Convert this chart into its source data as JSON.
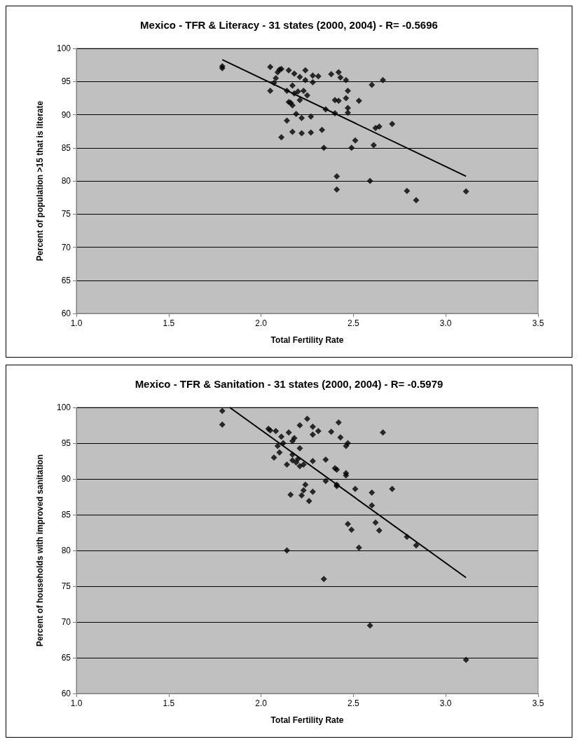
{
  "chart_data": [
    {
      "type": "scatter",
      "title": "Mexico - TFR & Literacy - 31 states (2000, 2004) - R= -0.5696",
      "xlabel": "Total Fertility Rate",
      "ylabel": "Percent of population >15 that is literate",
      "xlim": [
        1.0,
        3.5
      ],
      "xticks": [
        {
          "value": 1,
          "label": "1.0"
        },
        1.5,
        {
          "value": 2,
          "label": "2.0"
        },
        2.5,
        {
          "value": 3,
          "label": "3.0"
        },
        3.5
      ],
      "ylim": [
        60,
        100
      ],
      "yticks": [
        60,
        65,
        70,
        75,
        80,
        85,
        90,
        95,
        100
      ],
      "grid": "y",
      "marker": "diamond",
      "series": [
        {
          "color": "#000000",
          "x": [
            1.79,
            1.79,
            2.05,
            2.05,
            2.07,
            2.08,
            2.09,
            2.1,
            2.11,
            2.11,
            2.14,
            2.14,
            2.15,
            2.15,
            2.16,
            2.17,
            2.17,
            2.17,
            2.18,
            2.18,
            2.19,
            2.2,
            2.21,
            2.21,
            2.22,
            2.22,
            2.23,
            2.24,
            2.24,
            2.25,
            2.27,
            2.27,
            2.28,
            2.28,
            2.31,
            2.33,
            2.34,
            2.35,
            2.38,
            2.4,
            2.4,
            2.41,
            2.41,
            2.42,
            2.42,
            2.43,
            2.46,
            2.46,
            2.47,
            2.47,
            2.47,
            2.49,
            2.51,
            2.53,
            2.59,
            2.6,
            2.61,
            2.62,
            2.64,
            2.66,
            2.71,
            2.79,
            2.84,
            3.11
          ],
          "values": [
            97.3,
            97.0,
            97.2,
            93.6,
            94.8,
            95.5,
            96.4,
            96.8,
            86.6,
            96.9,
            89.1,
            93.6,
            96.7,
            91.9,
            91.8,
            91.4,
            94.4,
            87.4,
            96.2,
            93.2,
            90.1,
            93.5,
            92.2,
            95.7,
            89.5,
            87.2,
            93.6,
            95.2,
            96.7,
            92.9,
            87.3,
            89.7,
            95.9,
            94.9,
            95.8,
            87.7,
            85.0,
            90.8,
            96.1,
            92.2,
            90.2,
            80.7,
            78.7,
            92.1,
            96.4,
            95.6,
            95.2,
            92.5,
            91.0,
            90.3,
            93.6,
            85.0,
            86.1,
            92.1,
            80.0,
            94.5,
            85.4,
            88.0,
            88.2,
            95.2,
            88.6,
            78.5,
            77.1,
            78.4
          ]
        },
        {
          "type": "line",
          "color": "#000000",
          "marker": "none",
          "x": [
            1.79,
            3.11
          ],
          "values": [
            98.3,
            80.7
          ]
        }
      ]
    },
    {
      "type": "scatter",
      "title": "Mexico - TFR & Sanitation - 31 states (2000, 2004) - R= -0.5979",
      "xlabel": "Total Fertility Rate",
      "ylabel": "Percent of households with improved sanitation",
      "xlim": [
        1.0,
        3.5
      ],
      "xticks": [
        {
          "value": 1,
          "label": "1.0"
        },
        1.5,
        {
          "value": 2,
          "label": "2.0"
        },
        2.5,
        {
          "value": 3,
          "label": "3.0"
        },
        3.5
      ],
      "ylim": [
        60,
        100
      ],
      "yticks": [
        60,
        65,
        70,
        75,
        80,
        85,
        90,
        95,
        100
      ],
      "grid": "y",
      "marker": "diamond",
      "series": [
        {
          "color": "#000000",
          "x": [
            1.79,
            1.79,
            2.04,
            2.05,
            2.07,
            2.08,
            2.09,
            2.1,
            2.11,
            2.12,
            2.14,
            2.14,
            2.15,
            2.16,
            2.17,
            2.17,
            2.17,
            2.18,
            2.19,
            2.2,
            2.21,
            2.21,
            2.21,
            2.22,
            2.23,
            2.23,
            2.24,
            2.25,
            2.26,
            2.28,
            2.28,
            2.28,
            2.28,
            2.31,
            2.34,
            2.35,
            2.35,
            2.38,
            2.4,
            2.41,
            2.41,
            2.41,
            2.42,
            2.43,
            2.46,
            2.46,
            2.46,
            2.47,
            2.47,
            2.49,
            2.51,
            2.53,
            2.59,
            2.6,
            2.6,
            2.62,
            2.64,
            2.66,
            2.71,
            2.79,
            2.84,
            3.11
          ],
          "values": [
            99.5,
            97.6,
            97.0,
            96.8,
            93.0,
            96.7,
            94.6,
            93.7,
            95.9,
            95.0,
            80.0,
            92.0,
            96.5,
            87.8,
            95.3,
            92.6,
            93.4,
            95.7,
            92.3,
            92.8,
            97.5,
            94.3,
            91.8,
            87.7,
            88.4,
            92.0,
            89.2,
            98.4,
            86.9,
            92.5,
            97.3,
            88.2,
            96.2,
            96.7,
            76.0,
            89.7,
            92.7,
            96.6,
            91.5,
            89.2,
            91.3,
            89.0,
            97.9,
            95.8,
            94.6,
            90.8,
            90.5,
            95.0,
            83.7,
            82.9,
            88.6,
            80.4,
            69.5,
            86.3,
            88.1,
            83.9,
            82.8,
            96.5,
            88.6,
            81.9,
            80.7,
            64.7
          ]
        },
        {
          "type": "line",
          "color": "#000000",
          "marker": "none",
          "x": [
            1.83,
            3.11
          ],
          "values": [
            100,
            76.2
          ]
        }
      ]
    }
  ]
}
